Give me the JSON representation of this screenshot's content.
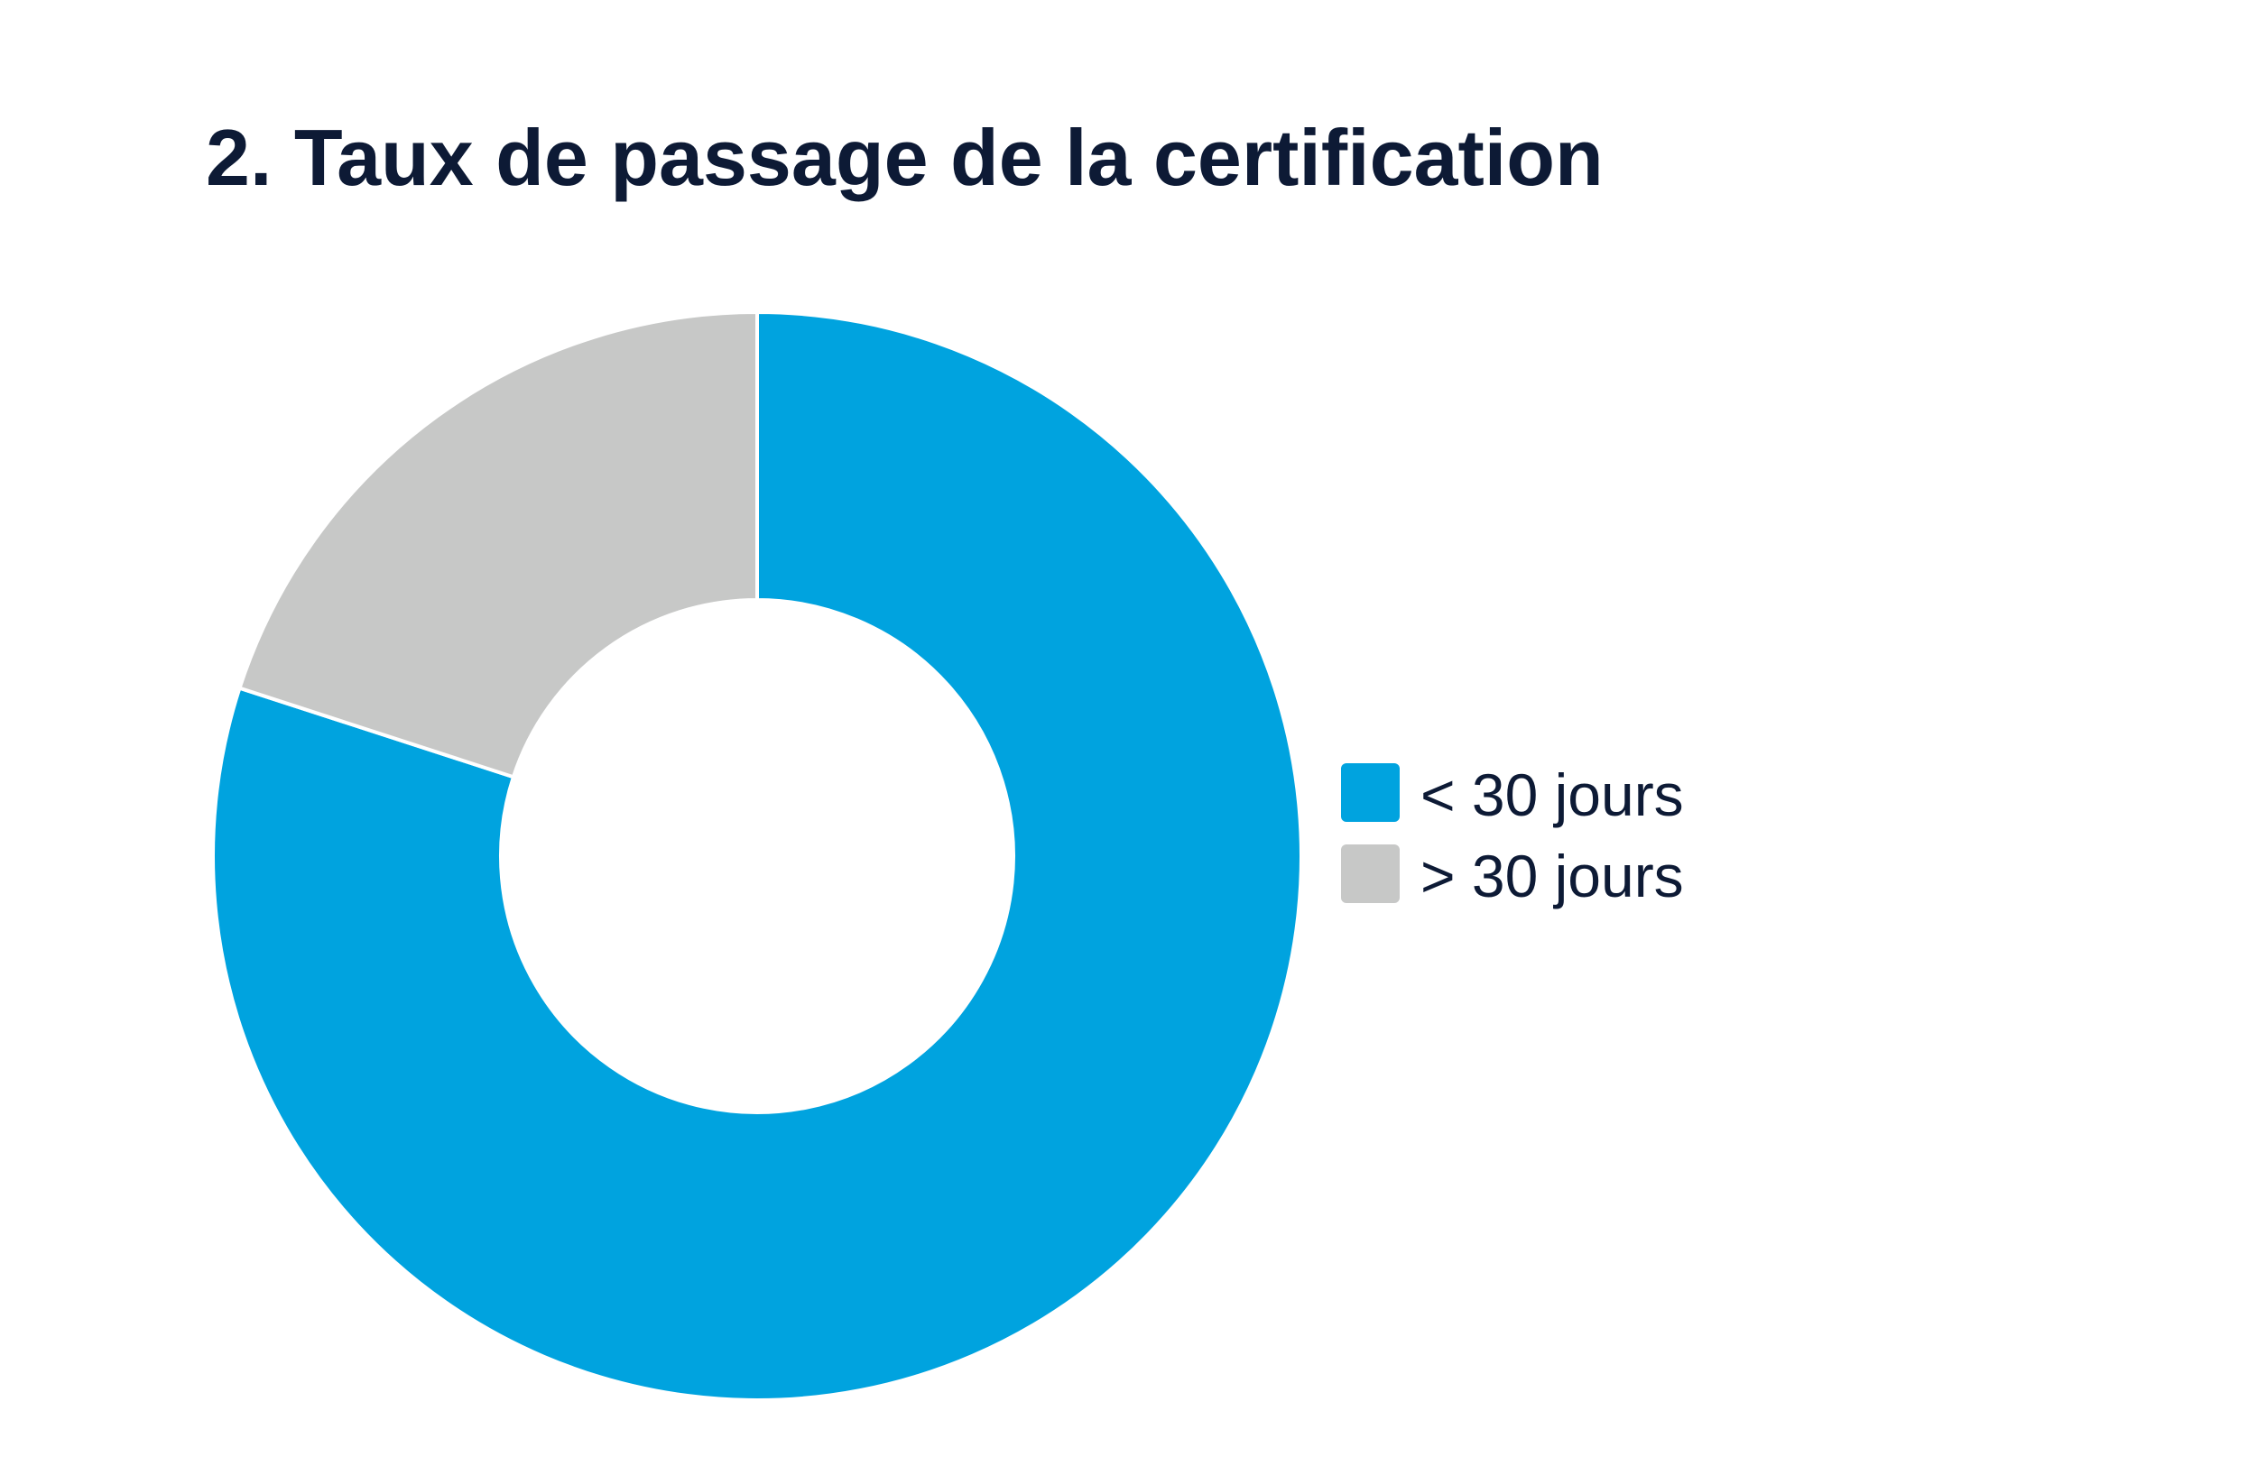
{
  "chart_data": {
    "type": "donut",
    "title": "2. Taux de passage de la certification",
    "categories": [
      "< 30 jours",
      "> 30 jours"
    ],
    "values": [
      80,
      20
    ],
    "colors": [
      "#00a3df",
      "#c7c8c7"
    ],
    "legend": "right"
  }
}
